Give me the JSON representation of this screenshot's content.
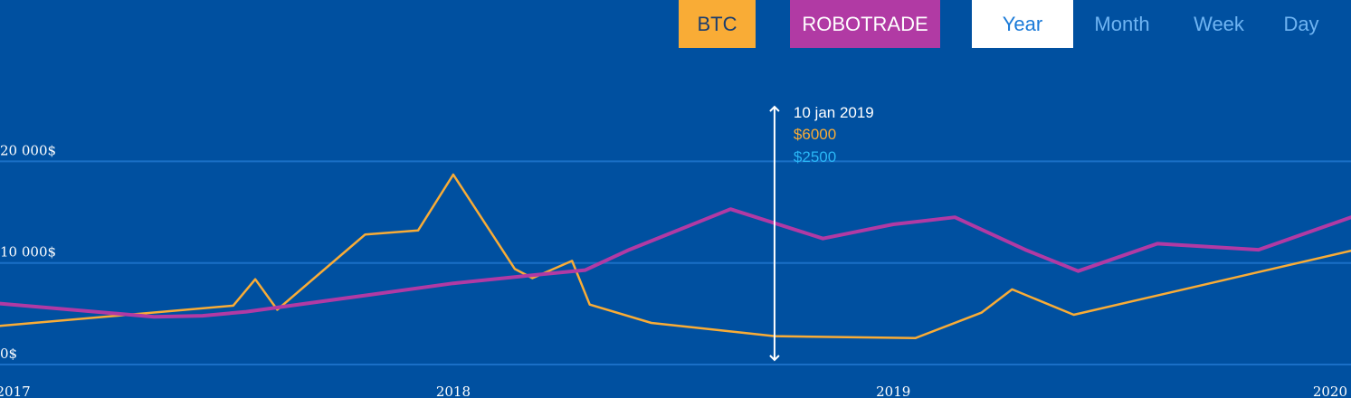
{
  "buttons": {
    "btc": {
      "label": "BTC",
      "color": "#f9ac36",
      "text_color": "#1b3d6e"
    },
    "robotrade": {
      "label": "ROBOTRADE",
      "color": "#b13aa4",
      "text_color": "#ffffff"
    }
  },
  "period_tabs": [
    {
      "label": "Year",
      "active": true
    },
    {
      "label": "Month",
      "active": false
    },
    {
      "label": "Week",
      "active": false
    },
    {
      "label": "Day",
      "active": false
    }
  ],
  "colors": {
    "background": "#0050a0",
    "gridline": "#1a6fc6",
    "btc_line": "#f9ac36",
    "robotrade_line": "#b13aa4",
    "tooltip_robotrade": "#29b6f6",
    "cursor": "#ffffff"
  },
  "tooltip": {
    "date": "10 jan 2019",
    "btc_value": "$6000",
    "robotrade_value": "$2500"
  },
  "chart_data": {
    "type": "line",
    "title": "",
    "xlabel": "",
    "ylabel": "",
    "x_ticks": [
      "2017",
      "2018",
      "2019",
      "2020"
    ],
    "x_tick_values": [
      2017.0,
      2018.0,
      2019.0,
      2020.0
    ],
    "y_ticks": [
      "0$",
      "10 000$",
      "20 000$"
    ],
    "y_tick_values": [
      0,
      10000,
      20000
    ],
    "xlim": [
      2016.97,
      2020.04
    ],
    "ylim": [
      0,
      26000
    ],
    "grid": true,
    "cursor_x": 2018.73,
    "series": [
      {
        "name": "BTC",
        "color": "#f9ac36",
        "x": [
          2016.97,
          2017.5,
          2017.55,
          2017.6,
          2017.8,
          2017.92,
          2018.0,
          2018.14,
          2018.18,
          2018.27,
          2018.31,
          2018.45,
          2018.73,
          2019.05,
          2019.2,
          2019.27,
          2019.41,
          2020.04
        ],
        "y": [
          3800,
          5800,
          8400,
          5400,
          12800,
          13200,
          18700,
          9400,
          8500,
          10200,
          5900,
          4100,
          2800,
          2600,
          5100,
          7400,
          4900,
          11200
        ]
      },
      {
        "name": "ROBOTRADE",
        "color": "#b13aa4",
        "x": [
          2016.97,
          2017.32,
          2017.43,
          2017.53,
          2017.8,
          2018.0,
          2018.18,
          2018.3,
          2018.4,
          2018.63,
          2018.84,
          2019.0,
          2019.14,
          2019.3,
          2019.42,
          2019.6,
          2019.83,
          2020.04
        ],
        "y": [
          6000,
          4700,
          4800,
          5200,
          6800,
          8000,
          8800,
          9300,
          11300,
          15300,
          12400,
          13800,
          14500,
          11300,
          9200,
          11900,
          11300,
          14500
        ]
      }
    ]
  }
}
